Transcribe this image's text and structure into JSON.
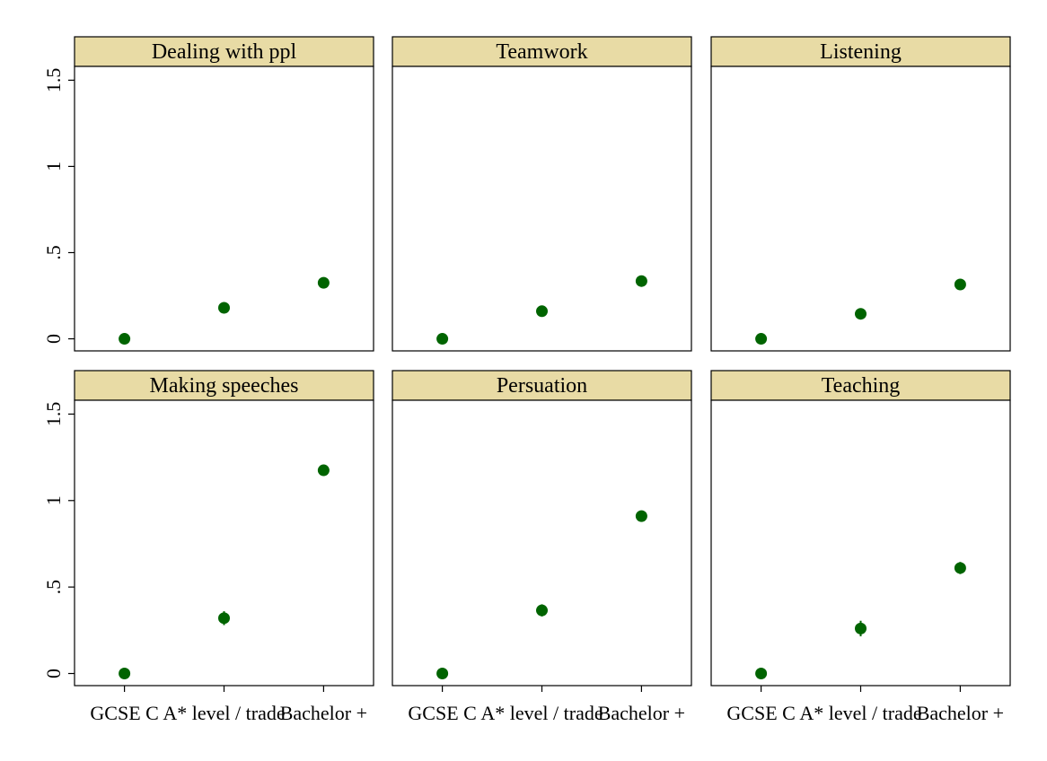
{
  "chart_data": {
    "type": "scatter",
    "layout": "facet-grid 2x3",
    "categories": [
      "GCSE C",
      "A* level / trade",
      "Bachelor +"
    ],
    "y_ticks": [
      0,
      0.5,
      1,
      1.5
    ],
    "y_tick_labels": [
      "0",
      ".5",
      "1",
      "1.5"
    ],
    "ylim": [
      -0.07,
      1.58
    ],
    "marker_color": "#006400",
    "strip_color": "#e8dba5",
    "panels": [
      {
        "title": "Dealing with ppl",
        "values": [
          0,
          0.18,
          0.325
        ],
        "ci": [
          [
            0,
            0
          ],
          [
            0.165,
            0.195
          ],
          [
            0.305,
            0.345
          ]
        ]
      },
      {
        "title": "Teamwork",
        "values": [
          0,
          0.16,
          0.335
        ],
        "ci": [
          [
            0,
            0
          ],
          [
            0.135,
            0.185
          ],
          [
            0.31,
            0.36
          ]
        ]
      },
      {
        "title": "Listening",
        "values": [
          0,
          0.145,
          0.315
        ],
        "ci": [
          [
            0,
            0
          ],
          [
            0.125,
            0.165
          ],
          [
            0.295,
            0.335
          ]
        ]
      },
      {
        "title": "Making speeches",
        "values": [
          0,
          0.32,
          1.175
        ],
        "ci": [
          [
            0,
            0
          ],
          [
            0.28,
            0.36
          ],
          [
            1.145,
            1.205
          ]
        ]
      },
      {
        "title": "Persuation",
        "values": [
          0,
          0.365,
          0.91
        ],
        "ci": [
          [
            0,
            0
          ],
          [
            0.33,
            0.4
          ],
          [
            0.88,
            0.94
          ]
        ]
      },
      {
        "title": "Teaching",
        "values": [
          0,
          0.26,
          0.61
        ],
        "ci": [
          [
            0,
            0
          ],
          [
            0.215,
            0.305
          ],
          [
            0.575,
            0.645
          ]
        ]
      }
    ]
  }
}
